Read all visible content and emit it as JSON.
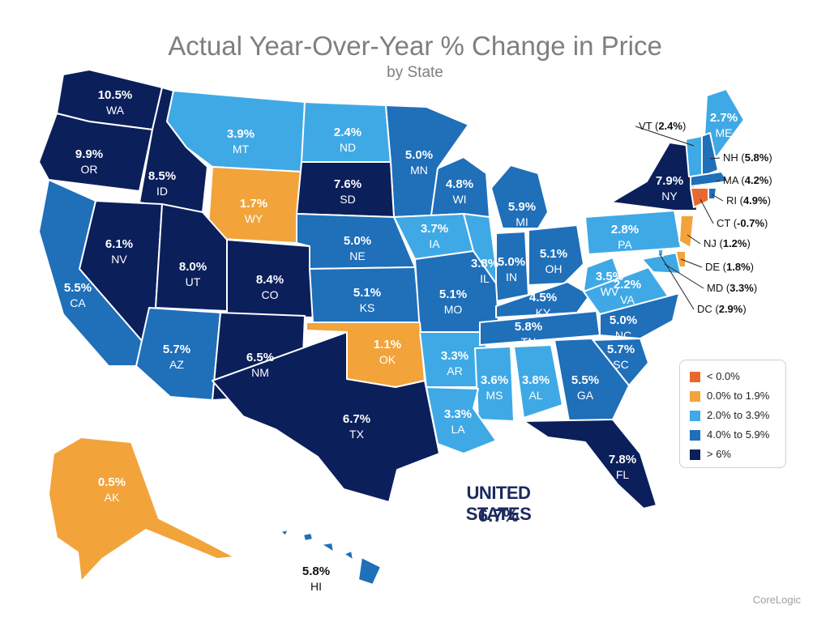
{
  "title": "Actual Year-Over-Year % Change in Price",
  "subtitle": "by State",
  "source": "CoreLogic",
  "colors": {
    "negative": "#e8692f",
    "low": "#f2a33a",
    "mid": "#3fa9e6",
    "high": "#1f6fb9",
    "top": "#0b1f5b"
  },
  "legend": [
    {
      "label": "< 0.0%",
      "color_key": "negative"
    },
    {
      "label": "0.0% to 1.9%",
      "color_key": "low"
    },
    {
      "label": "2.0% to 3.9%",
      "color_key": "mid"
    },
    {
      "label": "4.0% to 5.9%",
      "color_key": "high"
    },
    {
      "label": "> 6%",
      "color_key": "top"
    }
  ],
  "national": {
    "name": "UNITED STATES",
    "value": "6.7%"
  },
  "states": [
    {
      "abbr": "WA",
      "value": "10.5%",
      "bucket": "top"
    },
    {
      "abbr": "OR",
      "value": "9.9%",
      "bucket": "top"
    },
    {
      "abbr": "ID",
      "value": "8.5%",
      "bucket": "top"
    },
    {
      "abbr": "MT",
      "value": "3.9%",
      "bucket": "mid"
    },
    {
      "abbr": "ND",
      "value": "2.4%",
      "bucket": "mid"
    },
    {
      "abbr": "MN",
      "value": "5.0%",
      "bucket": "high"
    },
    {
      "abbr": "WI",
      "value": "4.8%",
      "bucket": "high"
    },
    {
      "abbr": "MI",
      "value": "5.9%",
      "bucket": "high"
    },
    {
      "abbr": "ME",
      "value": "2.7%",
      "bucket": "mid"
    },
    {
      "abbr": "WY",
      "value": "1.7%",
      "bucket": "low"
    },
    {
      "abbr": "SD",
      "value": "7.6%",
      "bucket": "top"
    },
    {
      "abbr": "NY",
      "value": "7.9%",
      "bucket": "top"
    },
    {
      "abbr": "NV",
      "value": "6.1%",
      "bucket": "top"
    },
    {
      "abbr": "UT",
      "value": "8.0%",
      "bucket": "top"
    },
    {
      "abbr": "CO",
      "value": "8.4%",
      "bucket": "top"
    },
    {
      "abbr": "NE",
      "value": "5.0%",
      "bucket": "high"
    },
    {
      "abbr": "IA",
      "value": "3.7%",
      "bucket": "mid"
    },
    {
      "abbr": "IL",
      "value": "3.8%",
      "bucket": "mid"
    },
    {
      "abbr": "IN",
      "value": "5.0%",
      "bucket": "high"
    },
    {
      "abbr": "OH",
      "value": "5.1%",
      "bucket": "high"
    },
    {
      "abbr": "PA",
      "value": "2.8%",
      "bucket": "mid"
    },
    {
      "abbr": "CA",
      "value": "5.5%",
      "bucket": "high"
    },
    {
      "abbr": "KS",
      "value": "5.1%",
      "bucket": "high"
    },
    {
      "abbr": "MO",
      "value": "5.1%",
      "bucket": "high"
    },
    {
      "abbr": "KY",
      "value": "4.5%",
      "bucket": "high"
    },
    {
      "abbr": "WV",
      "value": "3.5%",
      "bucket": "mid"
    },
    {
      "abbr": "VA",
      "value": "2.2%",
      "bucket": "mid"
    },
    {
      "abbr": "AZ",
      "value": "5.7%",
      "bucket": "high"
    },
    {
      "abbr": "NM",
      "value": "6.5%",
      "bucket": "top"
    },
    {
      "abbr": "OK",
      "value": "1.1%",
      "bucket": "low"
    },
    {
      "abbr": "AR",
      "value": "3.3%",
      "bucket": "mid"
    },
    {
      "abbr": "TN",
      "value": "5.8%",
      "bucket": "high"
    },
    {
      "abbr": "NC",
      "value": "5.0%",
      "bucket": "high"
    },
    {
      "abbr": "SC",
      "value": "5.7%",
      "bucket": "high"
    },
    {
      "abbr": "MS",
      "value": "3.6%",
      "bucket": "mid"
    },
    {
      "abbr": "AL",
      "value": "3.8%",
      "bucket": "mid"
    },
    {
      "abbr": "GA",
      "value": "5.5%",
      "bucket": "high"
    },
    {
      "abbr": "TX",
      "value": "6.7%",
      "bucket": "top"
    },
    {
      "abbr": "LA",
      "value": "3.3%",
      "bucket": "mid"
    },
    {
      "abbr": "FL",
      "value": "7.8%",
      "bucket": "top"
    },
    {
      "abbr": "AK",
      "value": "0.5%",
      "bucket": "low"
    },
    {
      "abbr": "HI",
      "value": "5.8%",
      "bucket": "high"
    }
  ],
  "callouts": [
    {
      "abbr": "VT",
      "value": "2.4%",
      "bucket": "mid"
    },
    {
      "abbr": "NH",
      "value": "5.8%",
      "bucket": "high"
    },
    {
      "abbr": "MA",
      "value": "4.2%",
      "bucket": "high"
    },
    {
      "abbr": "RI",
      "value": "4.9%",
      "bucket": "high"
    },
    {
      "abbr": "CT",
      "value": "-0.7%",
      "bucket": "negative"
    },
    {
      "abbr": "NJ",
      "value": "1.2%",
      "bucket": "low"
    },
    {
      "abbr": "DE",
      "value": "1.8%",
      "bucket": "low"
    },
    {
      "abbr": "MD",
      "value": "3.3%",
      "bucket": "mid"
    },
    {
      "abbr": "DC",
      "value": "2.9%",
      "bucket": "mid"
    }
  ]
}
